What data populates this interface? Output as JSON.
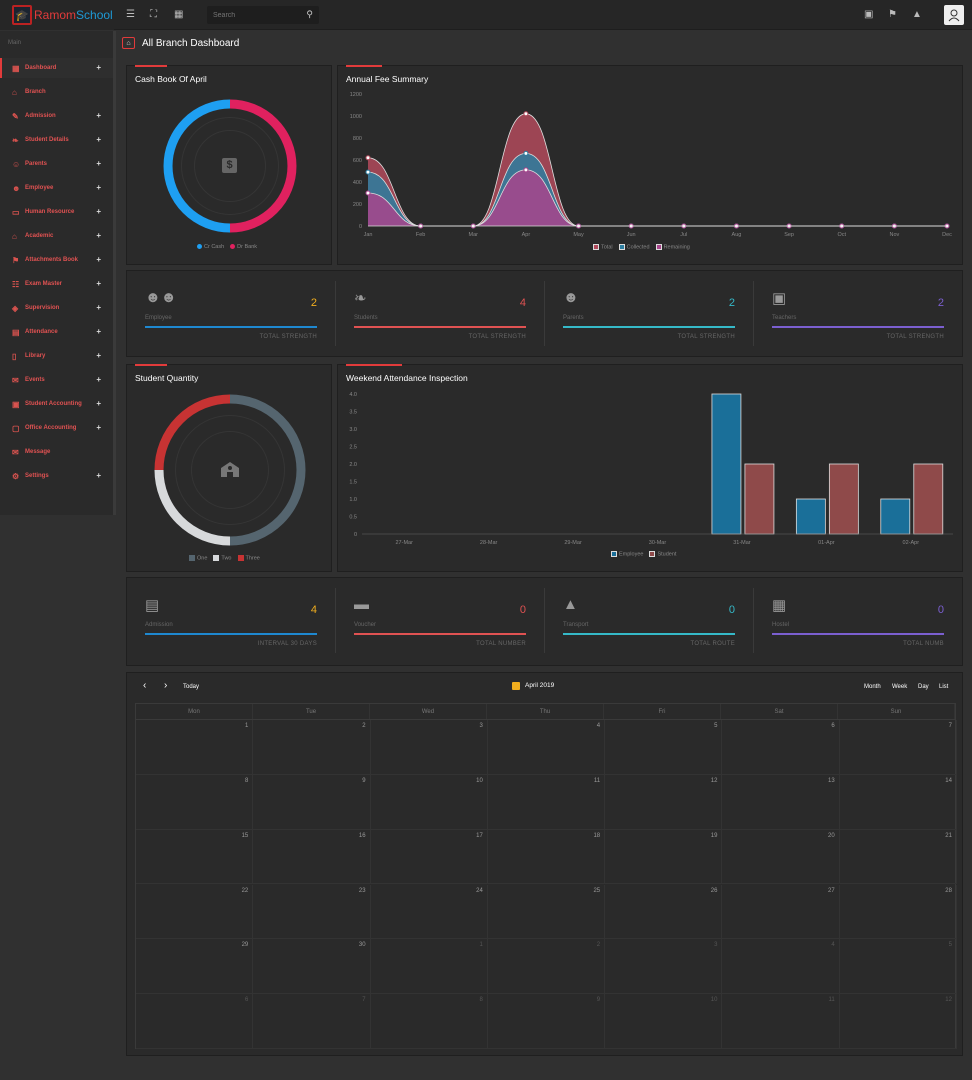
{
  "app": {
    "brand_a": "Ramom",
    "brand_b": "School",
    "logo_icon": "graduation-cap-icon"
  },
  "topbar": {
    "search_placeholder": "Search",
    "icons": [
      "menu-icon",
      "fullscreen-icon",
      "apps-grid-icon",
      "calendar-icon",
      "flag-icon",
      "bell-icon",
      "user-avatar-icon"
    ]
  },
  "sidebar": {
    "title": "Main",
    "items": [
      {
        "label": "Dashboard",
        "icon": "dashboard-icon",
        "expand": "+"
      },
      {
        "label": "Branch",
        "icon": "branch-icon",
        "expand": ""
      },
      {
        "label": "Admission",
        "icon": "edit-icon",
        "expand": "+"
      },
      {
        "label": "Student Details",
        "icon": "graduation-cap-icon",
        "expand": "+"
      },
      {
        "label": "Parents",
        "icon": "parents-icon",
        "expand": "+"
      },
      {
        "label": "Employee",
        "icon": "employee-icon",
        "expand": "+"
      },
      {
        "label": "Human Resource",
        "icon": "human-resource-icon",
        "expand": "+"
      },
      {
        "label": "Academic",
        "icon": "academic-icon",
        "expand": "+"
      },
      {
        "label": "Attachments Book",
        "icon": "attachment-icon",
        "expand": "+"
      },
      {
        "label": "Exam Master",
        "icon": "exam-icon",
        "expand": "+"
      },
      {
        "label": "Supervision",
        "icon": "supervision-icon",
        "expand": "+"
      },
      {
        "label": "Attendance",
        "icon": "attendance-icon",
        "expand": "+"
      },
      {
        "label": "Library",
        "icon": "library-icon",
        "expand": "+"
      },
      {
        "label": "Events",
        "icon": "events-icon",
        "expand": "+"
      },
      {
        "label": "Student Accounting",
        "icon": "accounting-icon",
        "expand": "+"
      },
      {
        "label": "Office Accounting",
        "icon": "office-accounting-icon",
        "expand": "+"
      },
      {
        "label": "Message",
        "icon": "message-icon",
        "expand": ""
      },
      {
        "label": "Settings",
        "icon": "settings-icon",
        "expand": "+"
      }
    ]
  },
  "page": {
    "title": "All Branch Dashboard",
    "icon": "home-icon"
  },
  "cashbook": {
    "title": "Cash Book Of April",
    "legend": [
      "Cr Cash",
      "Dr Bank"
    ],
    "center_icon": "dollar-icon",
    "chart_data": {
      "type": "pie",
      "labels": [
        "Cr Cash",
        "Dr Bank"
      ],
      "values": [
        50,
        50
      ],
      "colors": [
        "#1e9ff2",
        "#e0215f"
      ]
    }
  },
  "annual": {
    "title": "Annual Fee Summary",
    "chart_data": {
      "type": "area",
      "categories": [
        "Jan",
        "Feb",
        "Mar",
        "Apr",
        "May",
        "Jun",
        "Jul",
        "Aug",
        "Sep",
        "Oct",
        "Nov",
        "Dec"
      ],
      "yticks": [
        "1200",
        "1000",
        "800",
        "600",
        "400",
        "200",
        "0"
      ],
      "ylim": [
        0,
        1200
      ],
      "series": [
        {
          "name": "Total",
          "color": "#b14a5c",
          "values": [
            620,
            0,
            0,
            1020,
            0,
            0,
            0,
            0,
            0,
            0,
            0,
            0
          ]
        },
        {
          "name": "Collected",
          "color": "#2d7ea0",
          "values": [
            490,
            0,
            0,
            660,
            0,
            0,
            0,
            0,
            0,
            0,
            0,
            0
          ]
        },
        {
          "name": "Remaining",
          "color": "#a8458c",
          "values": [
            300,
            0,
            0,
            510,
            0,
            0,
            0,
            0,
            0,
            0,
            0,
            0
          ]
        }
      ]
    }
  },
  "stats1": [
    {
      "label": "Employee",
      "value": "2",
      "footer": "TOTAL STRENGTH",
      "color": "#f0ad1e",
      "bar": "#1e88d0",
      "icon": "users-icon"
    },
    {
      "label": "Students",
      "value": "4",
      "footer": "TOTAL STRENGTH",
      "color": "#e05252",
      "bar": "#e05252",
      "icon": "student-icon"
    },
    {
      "label": "Parents",
      "value": "2",
      "footer": "TOTAL STRENGTH",
      "color": "#35b9c8",
      "bar": "#35b9c8",
      "icon": "parent-icon"
    },
    {
      "label": "Teachers",
      "value": "2",
      "footer": "TOTAL STRENGTH",
      "color": "#7b5fd0",
      "bar": "#7b5fd0",
      "icon": "teacher-icon"
    }
  ],
  "student_qty": {
    "title": "Student Quantity",
    "center_icon": "school-icon",
    "legend": [
      "One",
      "Two",
      "Three"
    ],
    "chart_data": {
      "type": "pie",
      "labels": [
        "One",
        "Two",
        "Three"
      ],
      "values": [
        2,
        1,
        1
      ],
      "colors": [
        "#55656f",
        "#d7d9db",
        "#c73333"
      ]
    }
  },
  "weekend": {
    "title": "Weekend Attendance Inspection",
    "chart_data": {
      "type": "bar",
      "categories": [
        "27-Mar",
        "28-Mar",
        "29-Mar",
        "30-Mar",
        "31-Mar",
        "01-Apr",
        "02-Apr"
      ],
      "yticks": [
        "4.0",
        "3.5",
        "3.0",
        "2.5",
        "2.0",
        "1.5",
        "1.0",
        "0.5",
        "0"
      ],
      "ylim": [
        0,
        4
      ],
      "series": [
        {
          "name": "Employee",
          "color": "#1a6f99",
          "values": [
            0,
            0,
            0,
            0,
            4,
            1,
            1
          ]
        },
        {
          "name": "Student",
          "color": "#8f4a4a",
          "values": [
            0,
            0,
            0,
            0,
            2,
            2,
            2
          ]
        }
      ]
    }
  },
  "stats2": [
    {
      "label": "Admission",
      "value": "4",
      "footer": "INTERVAL 30 DAYS",
      "color": "#f0ad1e",
      "bar": "#1e88d0",
      "icon": "id-card-icon"
    },
    {
      "label": "Voucher",
      "value": "0",
      "footer": "TOTAL NUMBER",
      "color": "#e05252",
      "bar": "#e05252",
      "icon": "money-icon"
    },
    {
      "label": "Transport",
      "value": "0",
      "footer": "TOTAL ROUTE",
      "color": "#35b9c8",
      "bar": "#35b9c8",
      "icon": "road-icon"
    },
    {
      "label": "Hostel",
      "value": "0",
      "footer": "TOTAL NUMB",
      "color": "#7b5fd0",
      "bar": "#7b5fd0",
      "icon": "hostel-icon"
    }
  ],
  "calendar": {
    "prev": "‹",
    "next": "›",
    "today": "Today",
    "title": "April 2019",
    "views": [
      "Month",
      "Week",
      "Day",
      "List"
    ],
    "weekdays": [
      "Mon",
      "Tue",
      "Wed",
      "Thu",
      "Fri",
      "Sat",
      "Sun"
    ],
    "days": [
      [
        "",
        "1",
        "2",
        "3",
        "4",
        "5",
        "6",
        "7"
      ],
      [
        "",
        "8",
        "9",
        "10",
        "11",
        "12",
        "13",
        "14"
      ],
      [
        "",
        "15",
        "16",
        "17",
        "18",
        "19",
        "20",
        "21"
      ],
      [
        "",
        "22",
        "23",
        "24",
        "25",
        "26",
        "27",
        "28"
      ],
      [
        "",
        "29",
        "30",
        "1",
        "2",
        "3",
        "4",
        "5"
      ],
      [
        "",
        "6",
        "7",
        "8",
        "9",
        "10",
        "11",
        "12"
      ]
    ]
  }
}
